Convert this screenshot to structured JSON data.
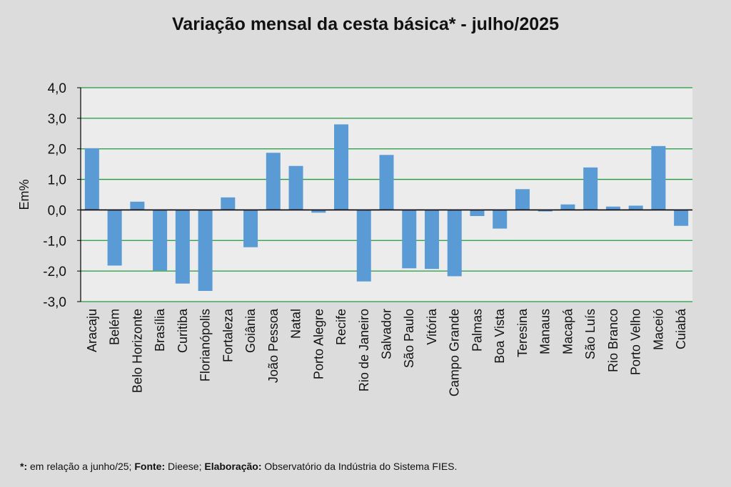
{
  "chart_data": {
    "type": "bar",
    "title": "Variação  mensal da cesta básica*  - julho/2025",
    "ylabel": "Em%",
    "xlabel": "",
    "ylim": [
      -3,
      4
    ],
    "yticks": [
      "4,0",
      "3,0",
      "2,0",
      "1,0",
      "0,0",
      "-1,0",
      "-2,0",
      "-3,0"
    ],
    "ytick_values": [
      4,
      3,
      2,
      1,
      0,
      -1,
      -2,
      -3
    ],
    "grid": true,
    "legend": "none",
    "categories": [
      "Aracaju",
      "Belém",
      "Belo Horizonte",
      "Brasília",
      "Curitiba",
      "Florianópolis",
      "Fortaleza",
      "Goiânia",
      "João Pessoa",
      "Natal",
      "Porto Alegre",
      "Recife",
      "Rio de Janeiro",
      "Salvador",
      "São Paulo",
      "Vitória",
      "Campo Grande",
      "Palmas",
      "Boa Vista",
      "Teresina",
      "Manaus",
      "Macapá",
      "São Luís",
      "Rio Branco",
      "Porto Velho",
      "Maceió",
      "Cuiabá"
    ],
    "values": [
      2.02,
      -1.82,
      0.27,
      -1.98,
      -2.41,
      -2.65,
      0.41,
      -1.22,
      1.87,
      1.44,
      -0.09,
      2.8,
      -2.34,
      1.8,
      -1.91,
      -1.93,
      -2.17,
      -0.2,
      -0.61,
      0.68,
      -0.05,
      0.18,
      1.39,
      0.11,
      0.14,
      2.09,
      -0.52
    ]
  },
  "colors": {
    "background": "#dcdcdc",
    "plot_area": "#ececec",
    "bar": "#5b9bd5",
    "grid": "#1f9a3c",
    "axis": "#000000"
  },
  "footnote": {
    "star": "*:",
    "star_text": " em relação a junho/25; ",
    "source_label": "Fonte:",
    "source_text": " Dieese; ",
    "prepared_label": "Elaboração:",
    "prepared_text": " Observatório da Indústria do Sistema FIES."
  }
}
